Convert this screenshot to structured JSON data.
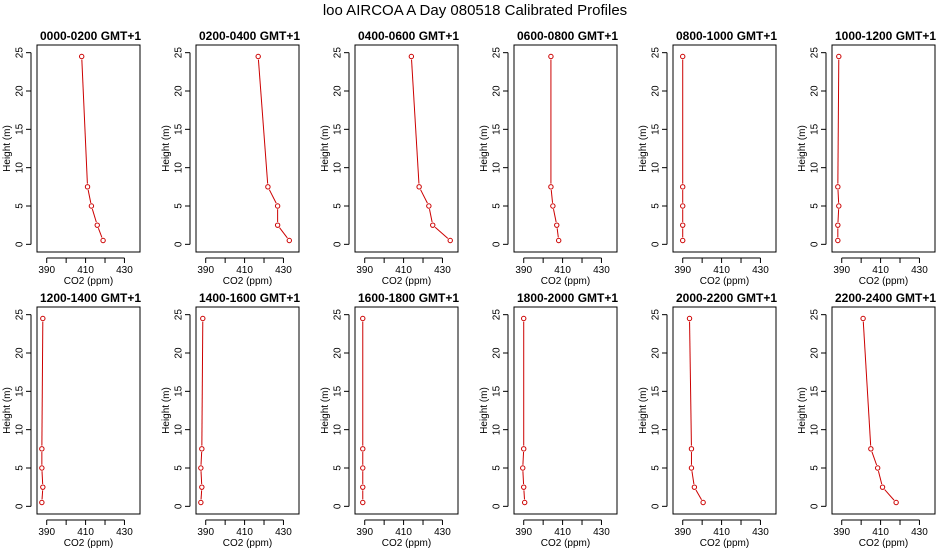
{
  "title": "loo AIRCOA A  Day 080518  Calibrated Profiles",
  "colors": {
    "series": "#cc0000",
    "axis": "#000000"
  },
  "chart_data": [
    {
      "type": "line",
      "title": "0000-0200 GMT+1",
      "xlabel": "CO2 (ppm)",
      "ylabel": "Height (m)",
      "xlim": [
        385,
        438
      ],
      "ylim": [
        -1,
        26
      ],
      "xticks": [
        390,
        410,
        430
      ],
      "yticks": [
        0,
        5,
        10,
        15,
        20,
        25
      ],
      "grid": false,
      "points": [
        {
          "x": 408,
          "y": 24.5
        },
        {
          "x": 411,
          "y": 7.5
        },
        {
          "x": 413,
          "y": 5
        },
        {
          "x": 416,
          "y": 2.5
        },
        {
          "x": 419,
          "y": 0.5
        }
      ]
    },
    {
      "type": "line",
      "title": "0200-0400 GMT+1",
      "xlabel": "CO2 (ppm)",
      "ylabel": "Height (m)",
      "xlim": [
        385,
        438
      ],
      "ylim": [
        -1,
        26
      ],
      "xticks": [
        390,
        410,
        430
      ],
      "yticks": [
        0,
        5,
        10,
        15,
        20,
        25
      ],
      "grid": false,
      "points": [
        {
          "x": 417,
          "y": 24.5
        },
        {
          "x": 422,
          "y": 7.5
        },
        {
          "x": 427,
          "y": 5
        },
        {
          "x": 427,
          "y": 2.5
        },
        {
          "x": 433,
          "y": 0.5
        }
      ]
    },
    {
      "type": "line",
      "title": "0400-0600 GMT+1",
      "xlabel": "CO2 (ppm)",
      "ylabel": "Height (m)",
      "xlim": [
        385,
        438
      ],
      "ylim": [
        -1,
        26
      ],
      "xticks": [
        390,
        410,
        430
      ],
      "yticks": [
        0,
        5,
        10,
        15,
        20,
        25
      ],
      "grid": false,
      "points": [
        {
          "x": 414,
          "y": 24.5
        },
        {
          "x": 418,
          "y": 7.5
        },
        {
          "x": 423,
          "y": 5
        },
        {
          "x": 425,
          "y": 2.5
        },
        {
          "x": 434,
          "y": 0.5
        }
      ]
    },
    {
      "type": "line",
      "title": "0600-0800 GMT+1",
      "xlabel": "CO2 (ppm)",
      "ylabel": "Height (m)",
      "xlim": [
        385,
        438
      ],
      "ylim": [
        -1,
        26
      ],
      "xticks": [
        390,
        410,
        430
      ],
      "yticks": [
        0,
        5,
        10,
        15,
        20,
        25
      ],
      "grid": false,
      "points": [
        {
          "x": 404,
          "y": 24.5
        },
        {
          "x": 404,
          "y": 7.5
        },
        {
          "x": 405,
          "y": 5
        },
        {
          "x": 407,
          "y": 2.5
        },
        {
          "x": 408,
          "y": 0.5
        }
      ]
    },
    {
      "type": "line",
      "title": "0800-1000 GMT+1",
      "xlabel": "CO2 (ppm)",
      "ylabel": "Height (m)",
      "xlim": [
        385,
        438
      ],
      "ylim": [
        -1,
        26
      ],
      "xticks": [
        390,
        410,
        430
      ],
      "yticks": [
        0,
        5,
        10,
        15,
        20,
        25
      ],
      "grid": false,
      "points": [
        {
          "x": 390,
          "y": 24.5
        },
        {
          "x": 390,
          "y": 7.5
        },
        {
          "x": 390,
          "y": 5
        },
        {
          "x": 390,
          "y": 2.5
        },
        {
          "x": 390,
          "y": 0.5
        }
      ]
    },
    {
      "type": "line",
      "title": "1000-1200 GMT+1",
      "xlabel": "CO2 (ppm)",
      "ylabel": "Height (m)",
      "xlim": [
        385,
        438
      ],
      "ylim": [
        -1,
        26
      ],
      "xticks": [
        390,
        410,
        430
      ],
      "yticks": [
        0,
        5,
        10,
        15,
        20,
        25
      ],
      "grid": false,
      "points": [
        {
          "x": 388.5,
          "y": 24.5
        },
        {
          "x": 388,
          "y": 7.5
        },
        {
          "x": 388.5,
          "y": 5
        },
        {
          "x": 388,
          "y": 2.5
        },
        {
          "x": 388,
          "y": 0.5
        }
      ]
    },
    {
      "type": "line",
      "title": "1200-1400 GMT+1",
      "xlabel": "CO2 (ppm)",
      "ylabel": "Height (m)",
      "xlim": [
        385,
        438
      ],
      "ylim": [
        -1,
        26
      ],
      "xticks": [
        390,
        410,
        430
      ],
      "yticks": [
        0,
        5,
        10,
        15,
        20,
        25
      ],
      "grid": false,
      "points": [
        {
          "x": 388,
          "y": 24.5
        },
        {
          "x": 387.5,
          "y": 7.5
        },
        {
          "x": 387.5,
          "y": 5
        },
        {
          "x": 388,
          "y": 2.5
        },
        {
          "x": 387.5,
          "y": 0.5
        }
      ]
    },
    {
      "type": "line",
      "title": "1400-1600 GMT+1",
      "xlabel": "CO2 (ppm)",
      "ylabel": "Height (m)",
      "xlim": [
        385,
        438
      ],
      "ylim": [
        -1,
        26
      ],
      "xticks": [
        390,
        410,
        430
      ],
      "yticks": [
        0,
        5,
        10,
        15,
        20,
        25
      ],
      "grid": false,
      "points": [
        {
          "x": 388.5,
          "y": 24.5
        },
        {
          "x": 388,
          "y": 7.5
        },
        {
          "x": 387.5,
          "y": 5
        },
        {
          "x": 388,
          "y": 2.5
        },
        {
          "x": 387.5,
          "y": 0.5
        }
      ]
    },
    {
      "type": "line",
      "title": "1600-1800 GMT+1",
      "xlabel": "CO2 (ppm)",
      "ylabel": "Height (m)",
      "xlim": [
        385,
        438
      ],
      "ylim": [
        -1,
        26
      ],
      "xticks": [
        390,
        410,
        430
      ],
      "yticks": [
        0,
        5,
        10,
        15,
        20,
        25
      ],
      "grid": false,
      "points": [
        {
          "x": 389,
          "y": 24.5
        },
        {
          "x": 389,
          "y": 7.5
        },
        {
          "x": 389,
          "y": 5
        },
        {
          "x": 389,
          "y": 2.5
        },
        {
          "x": 389,
          "y": 0.5
        }
      ]
    },
    {
      "type": "line",
      "title": "1800-2000 GMT+1",
      "xlabel": "CO2 (ppm)",
      "ylabel": "Height (m)",
      "xlim": [
        385,
        438
      ],
      "ylim": [
        -1,
        26
      ],
      "xticks": [
        390,
        410,
        430
      ],
      "yticks": [
        0,
        5,
        10,
        15,
        20,
        25
      ],
      "grid": false,
      "points": [
        {
          "x": 390,
          "y": 24.5
        },
        {
          "x": 390,
          "y": 7.5
        },
        {
          "x": 389.5,
          "y": 5
        },
        {
          "x": 390,
          "y": 2.5
        },
        {
          "x": 390.5,
          "y": 0.5
        }
      ]
    },
    {
      "type": "line",
      "title": "2000-2200 GMT+1",
      "xlabel": "CO2 (ppm)",
      "ylabel": "Height (m)",
      "xlim": [
        385,
        438
      ],
      "ylim": [
        -1,
        26
      ],
      "xticks": [
        390,
        410,
        430
      ],
      "yticks": [
        0,
        5,
        10,
        15,
        20,
        25
      ],
      "grid": false,
      "points": [
        {
          "x": 393.5,
          "y": 24.5
        },
        {
          "x": 394.5,
          "y": 7.5
        },
        {
          "x": 394.5,
          "y": 5
        },
        {
          "x": 396,
          "y": 2.5
        },
        {
          "x": 400.5,
          "y": 0.5
        }
      ]
    },
    {
      "type": "line",
      "title": "2200-2400 GMT+1",
      "xlabel": "CO2 (ppm)",
      "ylabel": "Height (m)",
      "xlim": [
        385,
        438
      ],
      "ylim": [
        -1,
        26
      ],
      "xticks": [
        390,
        410,
        430
      ],
      "yticks": [
        0,
        5,
        10,
        15,
        20,
        25
      ],
      "grid": false,
      "points": [
        {
          "x": 401,
          "y": 24.5
        },
        {
          "x": 405,
          "y": 7.5
        },
        {
          "x": 408.5,
          "y": 5
        },
        {
          "x": 411,
          "y": 2.5
        },
        {
          "x": 418,
          "y": 0.5
        }
      ]
    }
  ]
}
